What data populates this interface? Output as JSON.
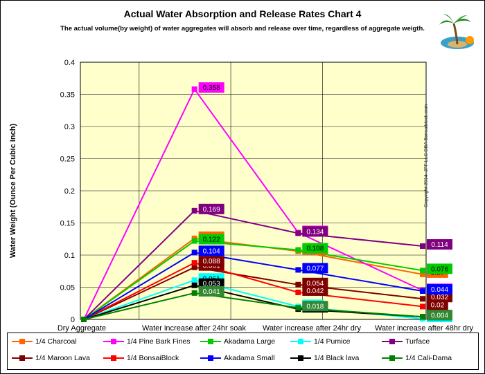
{
  "title": "Actual Water Absorption and Release Rates Chart 4",
  "subtitle": "The actual volume(by weight) of water aggregates will absorb and release over time, regardless of aggregate weigth.",
  "copyright": "Copyright 2014. JPF LLC DBA Bonsaiblock.com",
  "chart_data": {
    "type": "line",
    "title": "Actual Water Absorption and Release Rates Chart 4",
    "xlabel": "",
    "ylabel": "Water Weight (Ounce Per Cubic Inch)",
    "ylim": [
      0,
      0.4
    ],
    "yticks": [
      "0",
      "0.05",
      "0.1",
      "0.15",
      "0.2",
      "0.25",
      "0.3",
      "0.35",
      "0.4"
    ],
    "categories": [
      "Dry Aggregate",
      "Water increase after 24hr soak",
      "Water increase after 24hr dry",
      "Water increase after 48hr dry"
    ],
    "grid": true,
    "legend_position": "bottom",
    "series": [
      {
        "name": "1/4 Charcoal",
        "color": "#ff6600",
        "values": [
          0,
          0.126,
          0.106,
          0.07
        ],
        "labels": [
          "",
          "0.126",
          "0.106",
          "0.07"
        ]
      },
      {
        "name": "1/4 Pine Bark Fines",
        "color": "#ff00ff",
        "values": [
          0,
          0.358,
          0.135,
          0.045
        ],
        "labels": [
          "",
          "0.358",
          "0.135",
          "0.045"
        ]
      },
      {
        "name": "Akadama Large",
        "color": "#00cc00",
        "values": [
          0,
          0.122,
          0.108,
          0.076
        ],
        "labels": [
          "",
          "0.122",
          "0.108",
          "0.076"
        ]
      },
      {
        "name": "1/4 Pumice",
        "color": "#00ffff",
        "values": [
          0,
          0.061,
          0.02,
          0.001
        ],
        "labels": [
          "",
          "0.061",
          "0.02",
          "0.001"
        ]
      },
      {
        "name": "Turface",
        "color": "#800080",
        "values": [
          0,
          0.169,
          0.134,
          0.114
        ],
        "labels": [
          "",
          "0.169",
          "0.134",
          "0.114"
        ]
      },
      {
        "name": "1/4 Maroon Lava",
        "color": "#800000",
        "values": [
          0,
          0.081,
          0.054,
          0.032
        ],
        "labels": [
          "",
          "0.081",
          "0.054",
          "0.032"
        ]
      },
      {
        "name": "1/4 BonsaiBlock",
        "color": "#ff0000",
        "values": [
          0,
          0.088,
          0.042,
          0.02
        ],
        "labels": [
          "",
          "0.088",
          "0.042",
          "0.02"
        ]
      },
      {
        "name": "Akadama Small",
        "color": "#0000ff",
        "values": [
          0,
          0.104,
          0.077,
          0.044
        ],
        "labels": [
          "",
          "0.104",
          "0.077",
          "0.044"
        ]
      },
      {
        "name": "1/4 Black lava",
        "color": "#000000",
        "values": [
          0,
          0.053,
          0.016,
          0.004
        ],
        "labels": [
          "",
          "0.053",
          "0.016",
          "0.004"
        ]
      },
      {
        "name": "1/4 Cali-Dama",
        "color": "#008000",
        "values": [
          0,
          0.041,
          0.018,
          0.004
        ],
        "labels": [
          "",
          "0.041",
          "0.018",
          "0.004"
        ]
      }
    ]
  },
  "icons": {
    "logo": "palm-tree-logo-icon"
  }
}
